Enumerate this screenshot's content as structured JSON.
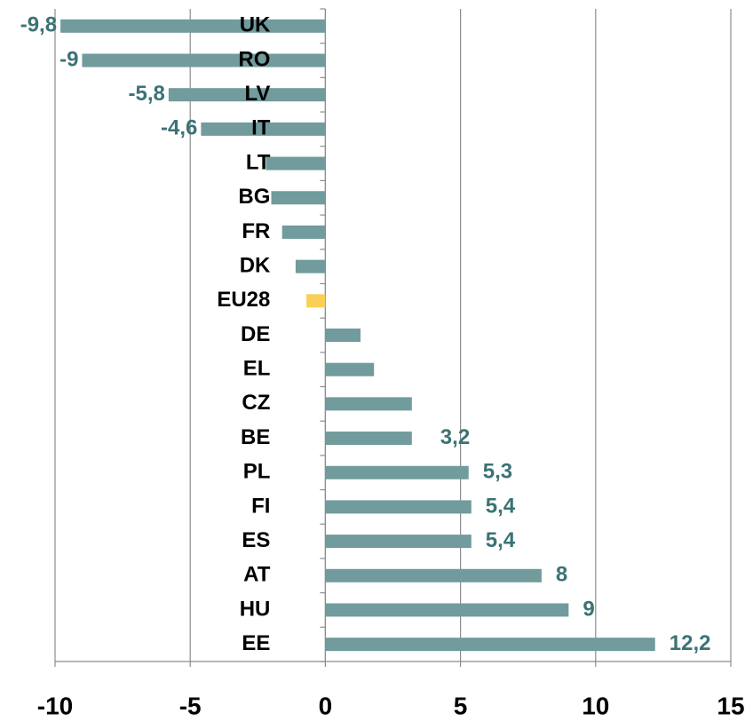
{
  "chart_data": {
    "type": "barh",
    "categories": [
      "UK",
      "RO",
      "LV",
      "IT",
      "LT",
      "BG",
      "FR",
      "DK",
      "EU28",
      "DE",
      "EL",
      "CZ",
      "BE",
      "PL",
      "FI",
      "ES",
      "AT",
      "HU",
      "EE"
    ],
    "values": [
      -9.8,
      -9,
      -5.8,
      -4.6,
      -2.2,
      -2.0,
      -1.6,
      -1.1,
      -0.7,
      1.3,
      1.8,
      3.2,
      3.2,
      5.3,
      5.4,
      5.4,
      8,
      9,
      12.2
    ],
    "value_labels": [
      "-9,8",
      "-9",
      "-5,8",
      "-4,6",
      null,
      null,
      null,
      null,
      null,
      null,
      null,
      null,
      "3,2",
      "5,3",
      "5,4",
      "5,4",
      "8",
      "9",
      "12,2"
    ],
    "colors": [
      "#719b9c",
      "#719b9c",
      "#719b9c",
      "#719b9c",
      "#719b9c",
      "#719b9c",
      "#719b9c",
      "#719b9c",
      "#f9cf57",
      "#719b9c",
      "#719b9c",
      "#719b9c",
      "#719b9c",
      "#719b9c",
      "#719b9c",
      "#719b9c",
      "#719b9c",
      "#719b9c",
      "#719b9c"
    ],
    "xlim": [
      -10,
      15
    ],
    "xticks": [
      -10,
      -5,
      0,
      5,
      10,
      15
    ],
    "grid": true
  }
}
